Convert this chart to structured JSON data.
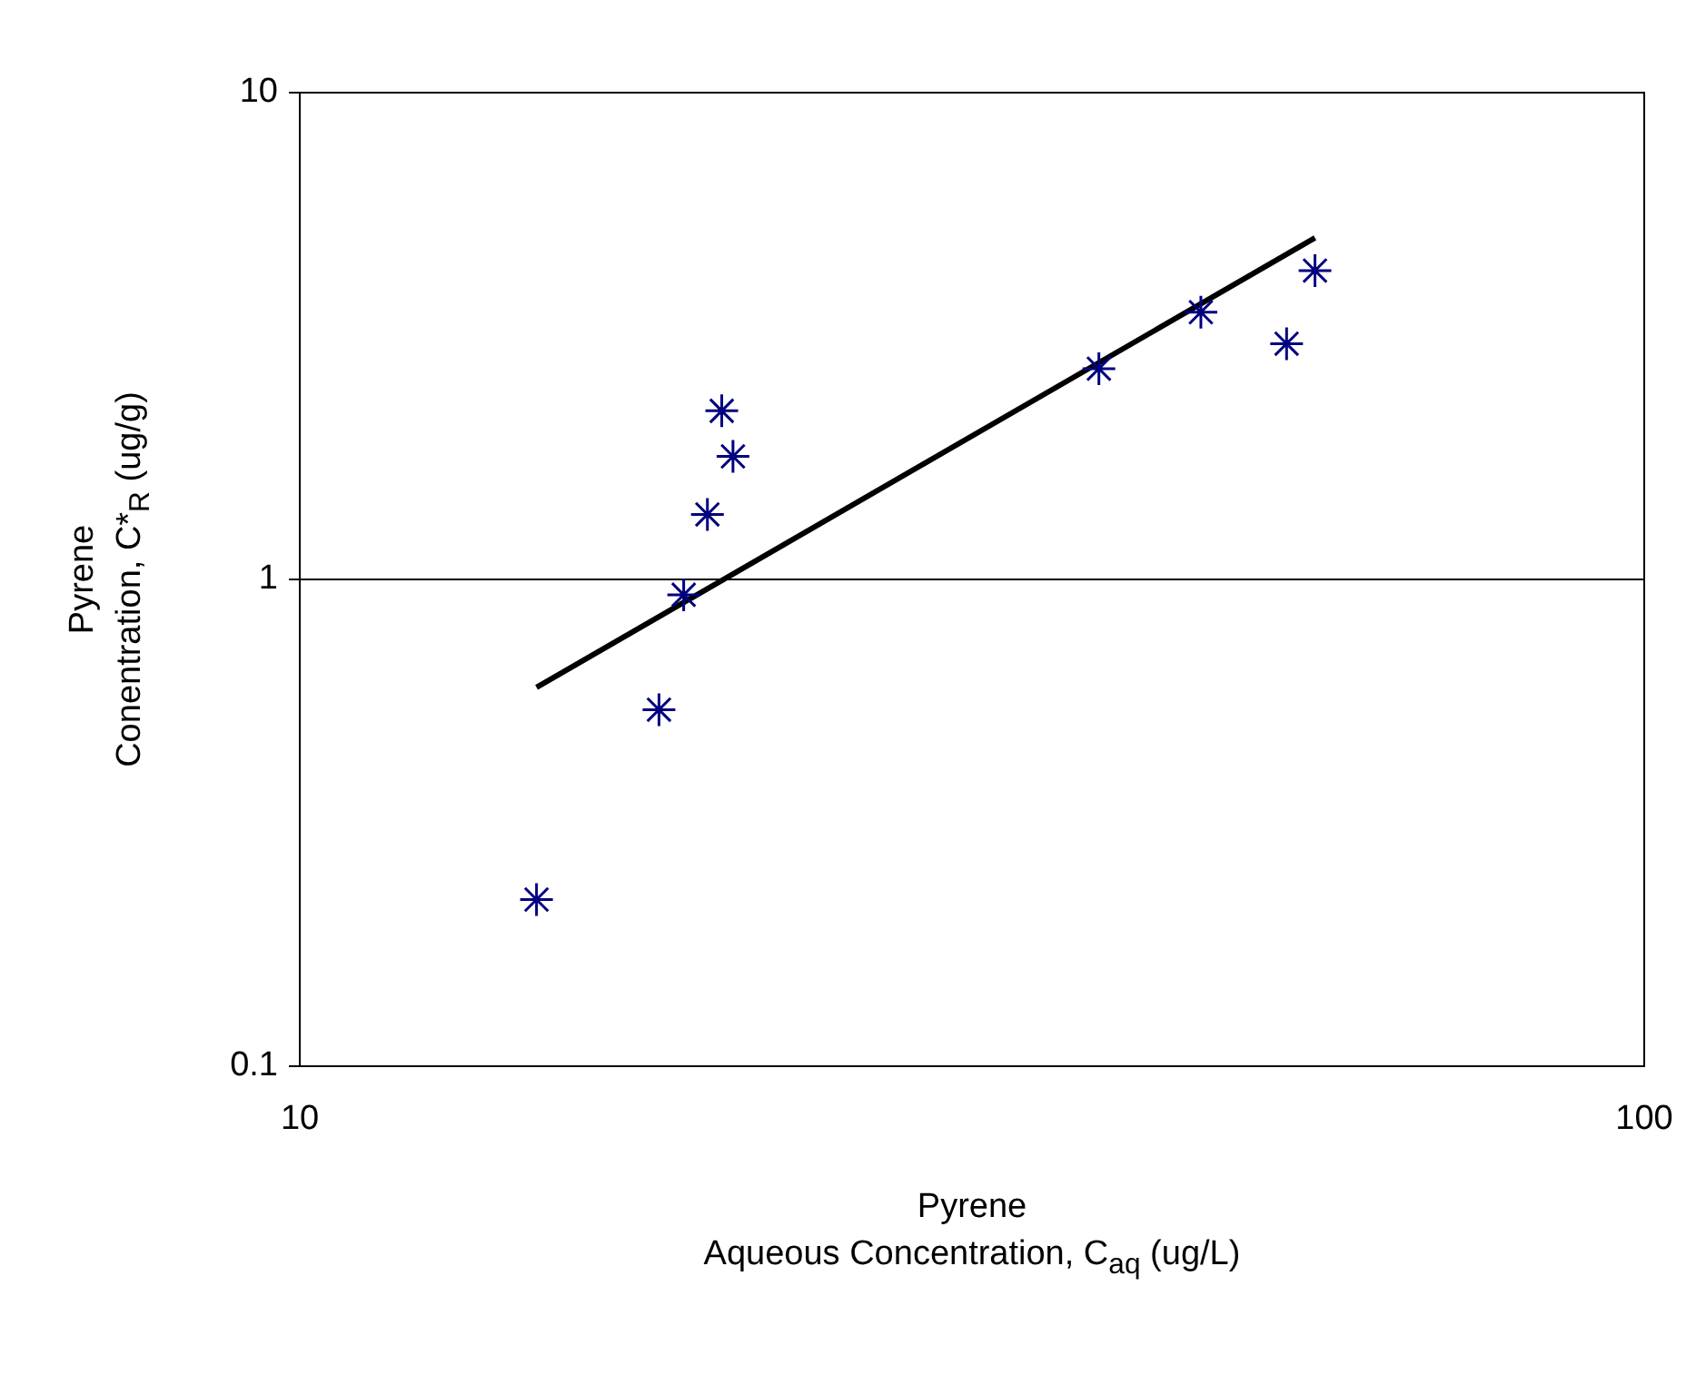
{
  "chart_data": {
    "type": "scatter",
    "xlabel": "Pyrene\nAqueous Concentration, C$_{aq}$ (ug/L)",
    "ylabel": "Pyrene\nConentration, C*$_{R}$ (ug/g)",
    "log": "xy",
    "xlim": [
      10,
      100
    ],
    "xticks": [
      10,
      100
    ],
    "ylim": [
      0.1,
      10
    ],
    "yticks": [
      0.1,
      1,
      10
    ],
    "grid": "y",
    "legend": false,
    "marker": "cross",
    "series": [
      {
        "color": "#000080",
        "x": [
          15.0,
          18.5,
          19.3,
          20.1,
          20.6,
          21.0,
          39.3,
          46.8,
          54.2,
          56.9
        ],
        "values": [
          0.22,
          0.54,
          0.93,
          1.36,
          2.22,
          1.79,
          2.71,
          3.54,
          3.05,
          4.31
        ]
      },
      {
        "type": "line",
        "color": "#000000",
        "marker": "none",
        "x": [
          15.0,
          56.9
        ],
        "values": [
          0.6,
          5.03
        ]
      }
    ]
  }
}
